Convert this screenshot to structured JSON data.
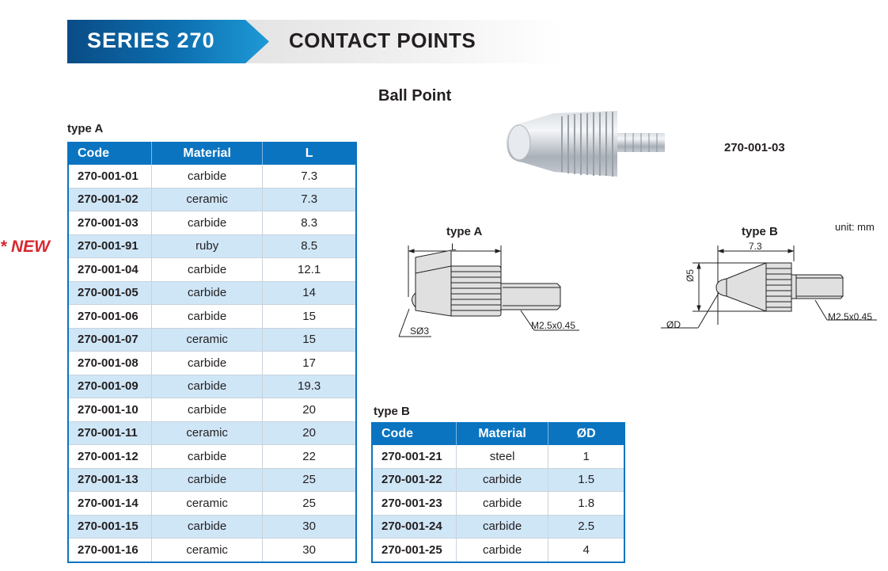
{
  "banner": {
    "series": "SERIES 270",
    "title": "CONTACT POINTS"
  },
  "section_title": "Ball Point",
  "new_badge": "* NEW",
  "photo_label": "270-001-03",
  "unit": "unit: mm",
  "diagram_a": {
    "label": "type A",
    "length": "L",
    "sphere": "SØ3",
    "thread": "M2.5x0.45"
  },
  "diagram_b": {
    "label": "type B",
    "length": "7.3",
    "diameter": "Ø5",
    "ball": "ØD",
    "thread": "M2.5x0.45"
  },
  "colors": {
    "header_blue": "#0b74c0",
    "row_alt": "#cfe6f7",
    "new_red": "#d7282f"
  },
  "table_a": {
    "label": "type A",
    "headers": [
      "Code",
      "Material",
      "L"
    ],
    "rows": [
      [
        "270-001-01",
        "carbide",
        "7.3"
      ],
      [
        "270-001-02",
        "ceramic",
        "7.3"
      ],
      [
        "270-001-03",
        "carbide",
        "8.3"
      ],
      [
        "270-001-91",
        "ruby",
        "8.5"
      ],
      [
        "270-001-04",
        "carbide",
        "12.1"
      ],
      [
        "270-001-05",
        "carbide",
        "14"
      ],
      [
        "270-001-06",
        "carbide",
        "15"
      ],
      [
        "270-001-07",
        "ceramic",
        "15"
      ],
      [
        "270-001-08",
        "carbide",
        "17"
      ],
      [
        "270-001-09",
        "carbide",
        "19.3"
      ],
      [
        "270-001-10",
        "carbide",
        "20"
      ],
      [
        "270-001-11",
        "ceramic",
        "20"
      ],
      [
        "270-001-12",
        "carbide",
        "22"
      ],
      [
        "270-001-13",
        "carbide",
        "25"
      ],
      [
        "270-001-14",
        "ceramic",
        "25"
      ],
      [
        "270-001-15",
        "carbide",
        "30"
      ],
      [
        "270-001-16",
        "ceramic",
        "30"
      ]
    ]
  },
  "table_b": {
    "label": "type B",
    "headers": [
      "Code",
      "Material",
      "ØD"
    ],
    "rows": [
      [
        "270-001-21",
        "steel",
        "1"
      ],
      [
        "270-001-22",
        "carbide",
        "1.5"
      ],
      [
        "270-001-23",
        "carbide",
        "1.8"
      ],
      [
        "270-001-24",
        "carbide",
        "2.5"
      ],
      [
        "270-001-25",
        "carbide",
        "4"
      ]
    ]
  }
}
